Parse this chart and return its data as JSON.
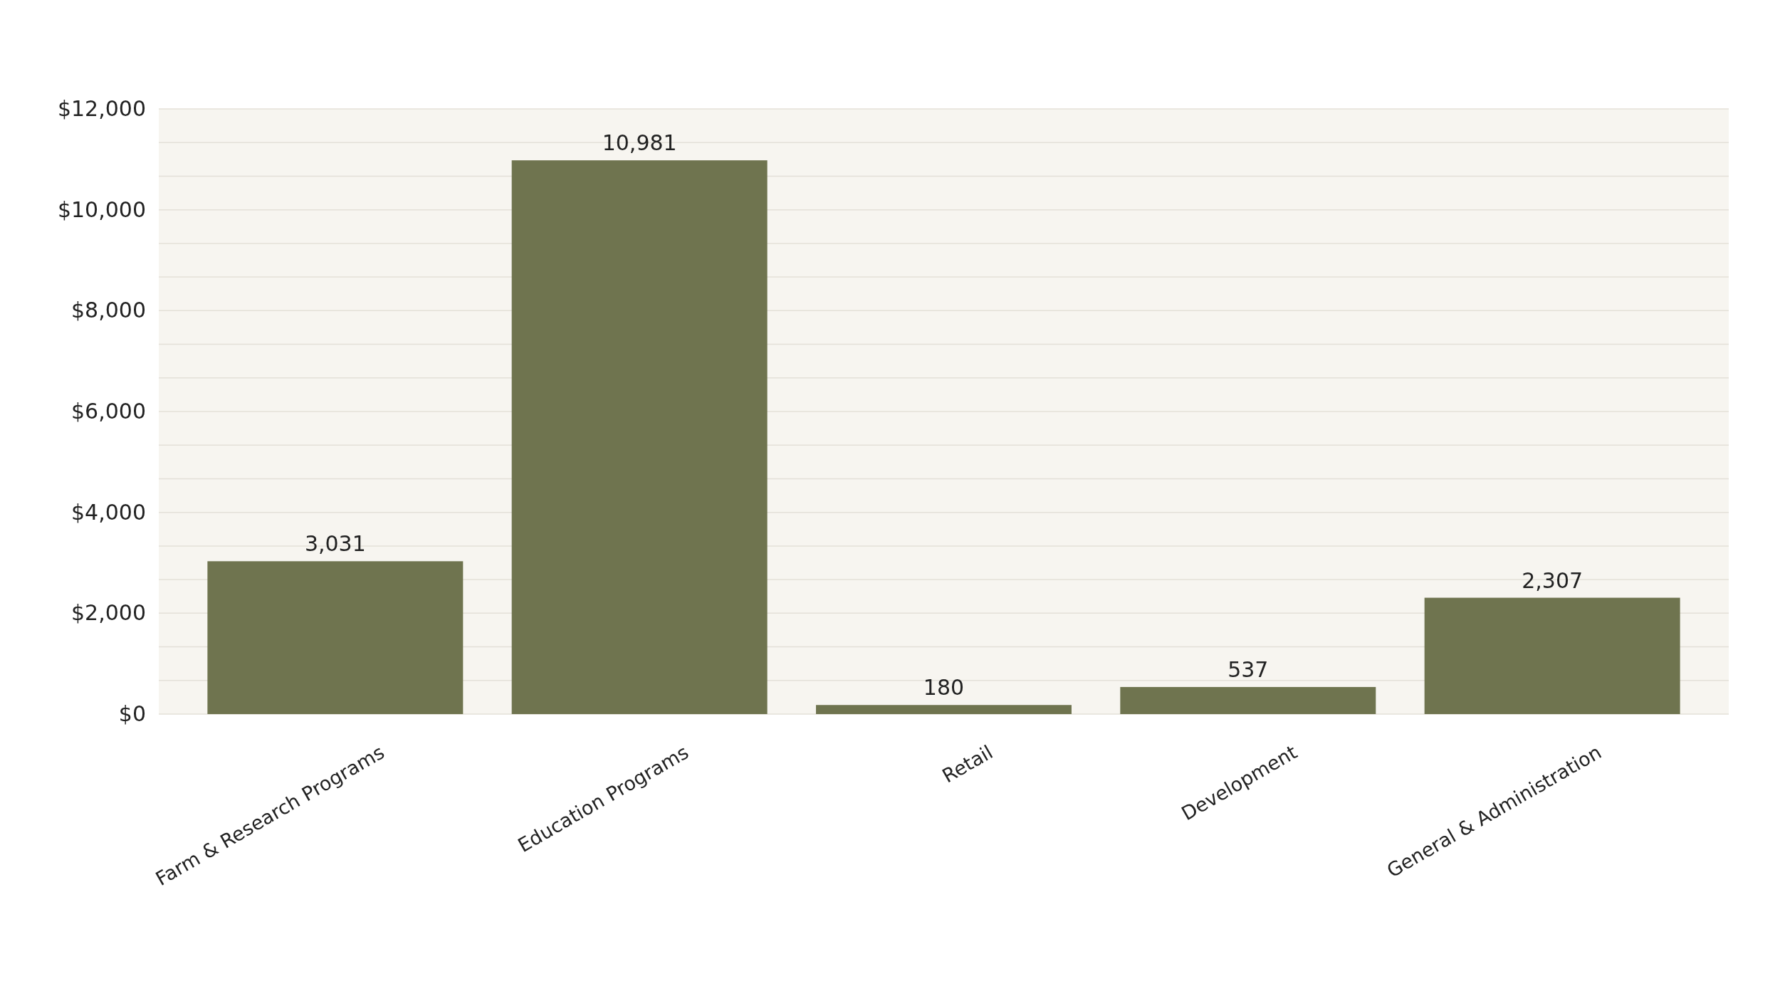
{
  "chart_data": {
    "type": "bar",
    "categories": [
      "Farm & Research Programs",
      "Education Programs",
      "Retail",
      "Development",
      "General & Administration"
    ],
    "values": [
      3031,
      10981,
      180,
      537,
      2307
    ],
    "color": "#6f744f",
    "ylim": [
      0,
      12000
    ],
    "yticks": [
      {
        "value": 0,
        "label": "$0"
      },
      {
        "value": 666.67,
        "label": null
      },
      {
        "value": 1333.33,
        "label": null
      },
      {
        "value": 2000,
        "label": "$2,000"
      },
      {
        "value": 2666.67,
        "label": null
      },
      {
        "value": 3333.33,
        "label": null
      },
      {
        "value": 4000,
        "label": "$4,000"
      },
      {
        "value": 4666.67,
        "label": null
      },
      {
        "value": 5333.33,
        "label": null
      },
      {
        "value": 6000,
        "label": "$6,000"
      },
      {
        "value": 6666.67,
        "label": null
      },
      {
        "value": 7333.33,
        "label": null
      },
      {
        "value": 8000,
        "label": "$8,000"
      },
      {
        "value": 8666.67,
        "label": null
      },
      {
        "value": 9333.33,
        "label": null
      },
      {
        "value": 10000,
        "label": "$10,000"
      },
      {
        "value": 10666.67,
        "label": null
      },
      {
        "value": 11333.33,
        "label": null
      },
      {
        "value": 12000,
        "label": "$12,000"
      }
    ],
    "grid": "y",
    "value_labels": [
      "3,031",
      "10,981",
      "180",
      "537",
      "2,307"
    ]
  }
}
